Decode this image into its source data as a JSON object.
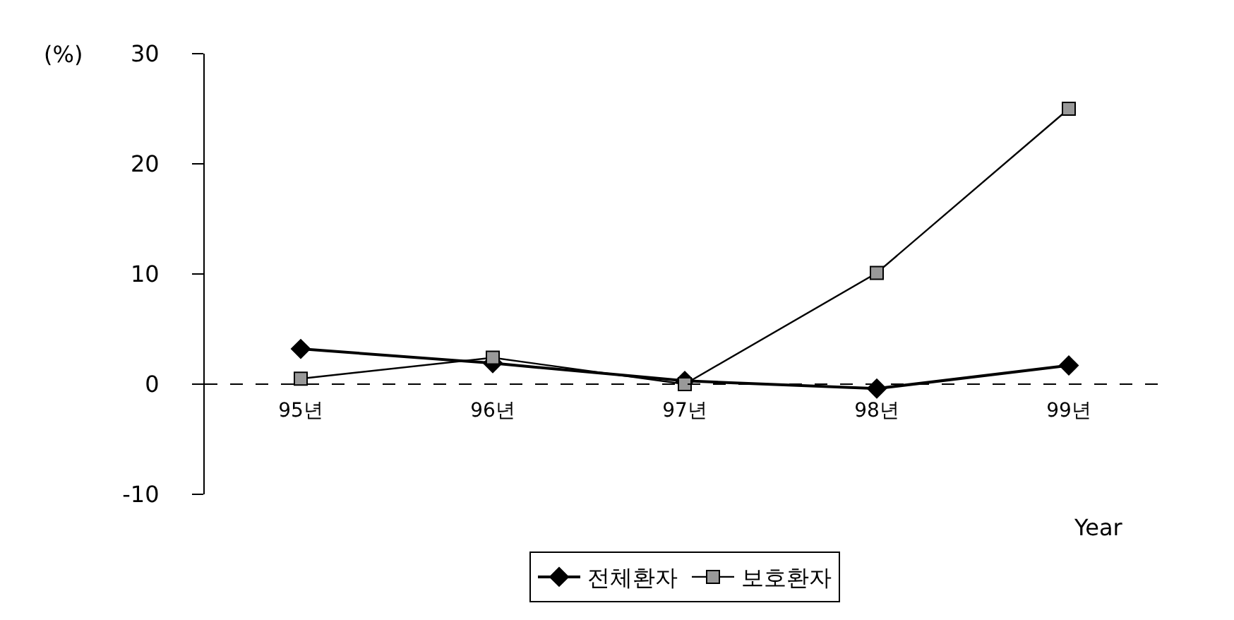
{
  "chart_data": {
    "type": "line",
    "ylabel": "(%)",
    "xlabel": "Year",
    "categories": [
      "95년",
      "96년",
      "97년",
      "98년",
      "99년"
    ],
    "series": [
      {
        "name": "전체환자",
        "color": "#000000",
        "values": [
          3.2,
          1.9,
          0.3,
          -0.4,
          1.7
        ],
        "marker": "diamond"
      },
      {
        "name": "보호환자",
        "color": "#000000",
        "values": [
          0.5,
          2.4,
          0.0,
          10.1,
          25.0
        ],
        "marker": "square"
      }
    ],
    "ylim": [
      -10,
      30
    ],
    "yticks": [
      -10,
      0,
      10,
      20,
      30
    ],
    "ref_lines": [
      {
        "axis": "y",
        "value": 0,
        "line_style": "dashed",
        "color": "#000000"
      }
    ],
    "legend": "bottom"
  }
}
